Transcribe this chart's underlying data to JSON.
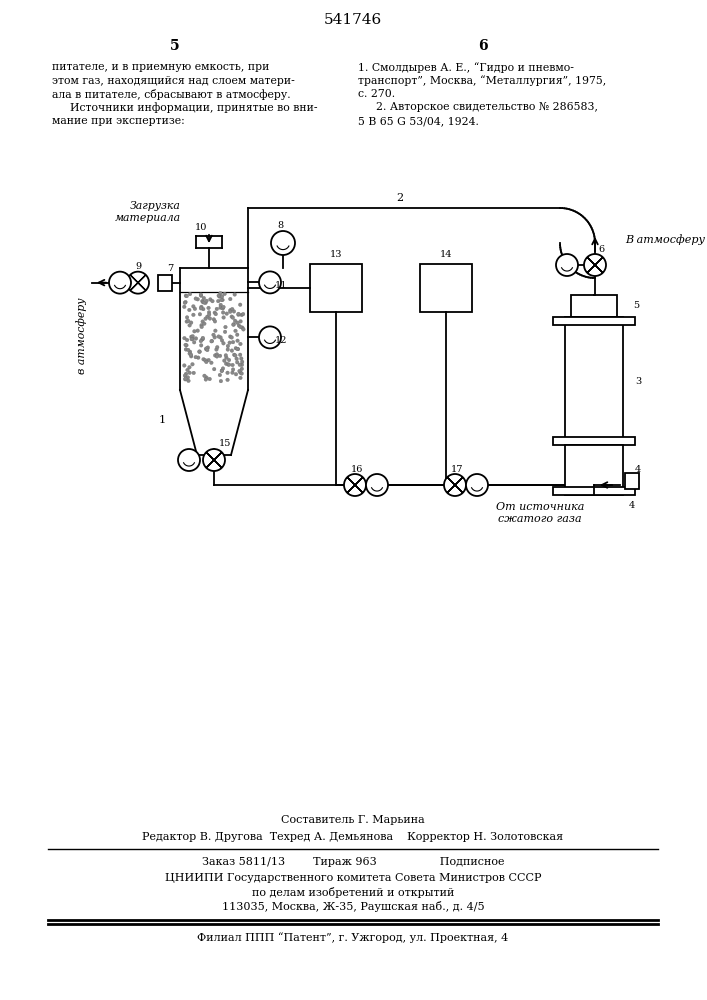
{
  "patent_number": "541746",
  "col5_header": "5",
  "col6_header": "6",
  "col5_text_lines": [
    "питателе, и в приемную емкость, при",
    "этом газ, находящийся над слоем матери-",
    "ала в питателе, сбрасывают в атмосферу.",
    "    Источники информации, принятые во вни-",
    "мание при экспертизе:"
  ],
  "col6_text_lines": [
    "1. Смолдырев А. Е., “Гидро и пневмо-",
    "транспорт”, Москва, “Металлургия”, 1975,",
    "с. 270.",
    "    2. Авторское свидетельство № 286583,",
    "5 В 65 G 53/04, 1924."
  ],
  "label_zagr": "Загрузка\nматериала",
  "label_atm_left": "в атмосферу",
  "label_atm_right": "В атмосферу",
  "label_source": "От источника\nсжатого газа",
  "footer_line1": "Составитель Г. Марьина",
  "footer_line2": "Редактор В. Другова  Техред А. Демьянова    Корректор Н. Золотовская",
  "footer_line3": "Заказ 5811/13        Тираж 963                  Подписное",
  "footer_line4": "ЦНИИПИ Государственного комитета Совета Министров СССР",
  "footer_line5": "по делам изобретений и открытий",
  "footer_line6": "113035, Москва, Ж-35, Раушская наб., д. 4/5",
  "footer_line7": "Филиал ППП “Патент”, г. Ужгород, ул. Проектная, 4",
  "bg_color": "#ffffff",
  "line_color": "#000000"
}
